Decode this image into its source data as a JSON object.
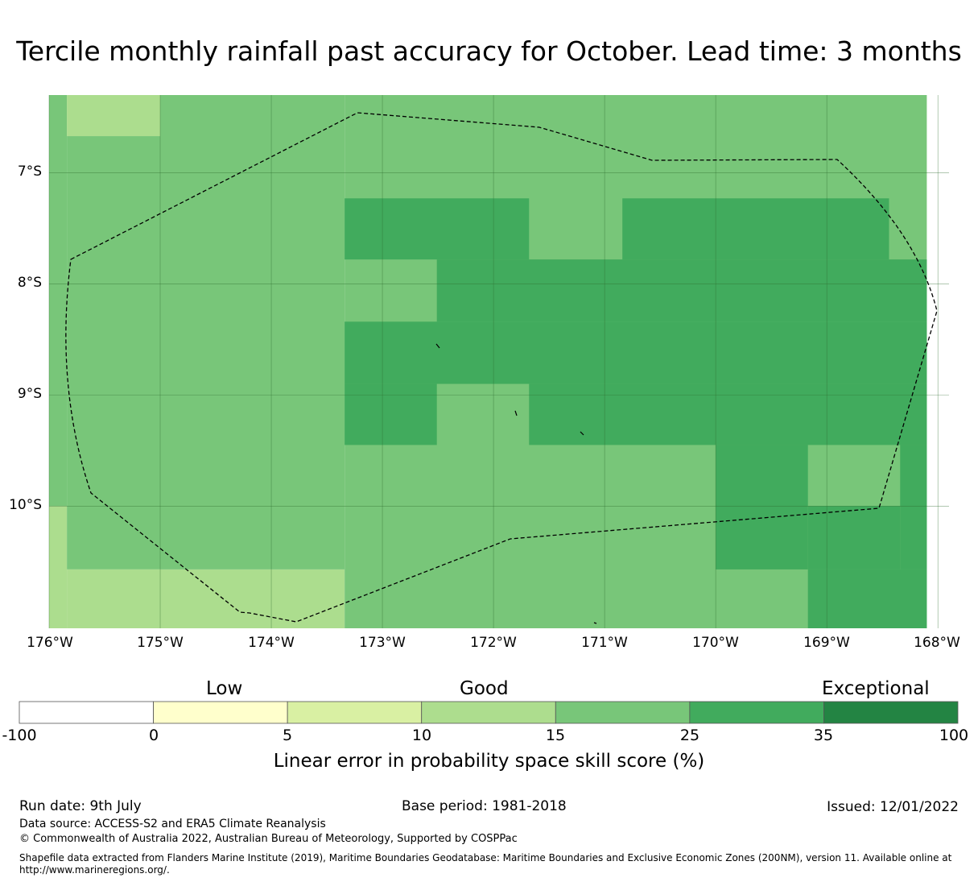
{
  "title": "Tercile monthly rainfall past accuracy for October. Lead time: 3 months",
  "map": {
    "lat_labels": [
      "7°S",
      "8°S",
      "9°S",
      "10°S"
    ],
    "lon_labels": [
      "176°W",
      "175°W",
      "174°W",
      "173°W",
      "172°W",
      "171°W",
      "170°W",
      "169°W",
      "168°W"
    ],
    "colors": {
      "class_10_15": "#acdd8e",
      "class_15_25": "#78c679",
      "class_25_35": "#41ab5d"
    },
    "grid_cells": [
      {
        "lon0": -176.0,
        "lon1": -175.84,
        "lat0": -6.3,
        "lat1": -10.0,
        "class": "class_15_25"
      },
      {
        "lon0": -175.84,
        "lon1": -175.0,
        "lat0": -6.3,
        "lat1": -6.67,
        "class": "class_10_15"
      },
      {
        "lon0": -175.84,
        "lon1": -175.0,
        "lat0": -6.67,
        "lat1": -10.57,
        "class": "class_15_25"
      },
      {
        "lon0": -176.0,
        "lon1": -175.84,
        "lat0": -10.0,
        "lat1": -11.1,
        "class": "class_10_15"
      },
      {
        "lon0": -175.84,
        "lon1": -173.34,
        "lat0": -10.57,
        "lat1": -11.1,
        "class": "class_10_15"
      },
      {
        "lon0": -175.0,
        "lon1": -173.34,
        "lat0": -6.3,
        "lat1": -10.57,
        "class": "class_15_25"
      },
      {
        "lon0": -173.34,
        "lon1": -168.1,
        "lat0": -6.3,
        "lat1": -11.1,
        "class": "class_15_25"
      },
      {
        "lon0": -173.34,
        "lon1": -171.68,
        "lat0": -7.23,
        "lat1": -7.78,
        "class": "class_25_35"
      },
      {
        "lon0": -170.84,
        "lon1": -168.44,
        "lat0": -7.23,
        "lat1": -7.78,
        "class": "class_25_35"
      },
      {
        "lon0": -172.51,
        "lon1": -168.1,
        "lat0": -7.78,
        "lat1": -8.34,
        "class": "class_25_35"
      },
      {
        "lon0": -173.34,
        "lon1": -168.1,
        "lat0": -8.34,
        "lat1": -8.9,
        "class": "class_25_35"
      },
      {
        "lon0": -173.34,
        "lon1": -172.51,
        "lat0": -8.9,
        "lat1": -9.45,
        "class": "class_25_35"
      },
      {
        "lon0": -171.68,
        "lon1": -168.1,
        "lat0": -8.9,
        "lat1": -9.45,
        "class": "class_25_35"
      },
      {
        "lon0": -170.0,
        "lon1": -169.17,
        "lat0": -9.45,
        "lat1": -10.57,
        "class": "class_25_35"
      },
      {
        "lon0": -168.34,
        "lon1": -168.1,
        "lat0": -9.45,
        "lat1": -10.57,
        "class": "class_25_35"
      },
      {
        "lon0": -169.17,
        "lon1": -168.34,
        "lat0": -10.0,
        "lat1": -10.57,
        "class": "class_25_35"
      },
      {
        "lon0": -170.0,
        "lon1": -169.17,
        "lat0": -10.57,
        "lat1": -10.57,
        "class": "class_25_35"
      },
      {
        "lon0": -169.17,
        "lon1": -168.1,
        "lat0": -10.57,
        "lat1": -11.1,
        "class": "class_25_35"
      }
    ]
  },
  "colorbar": {
    "categories": [
      "Low",
      "Good",
      "Exceptional"
    ],
    "ticks": [
      "-100",
      "0",
      "5",
      "10",
      "15",
      "25",
      "35",
      "100"
    ],
    "colors": [
      "#ffffff",
      "#ffffcc",
      "#d9f0a3",
      "#addd8e",
      "#78c679",
      "#41ab5d",
      "#238443"
    ],
    "label": "Linear error in probability space skill score (%)"
  },
  "footer": {
    "run_date": "Run date: 9th July",
    "base_period": "Base period: 1981-2018",
    "issued": "Issued: 12/01/2022",
    "data_source": "Data source: ACCESS-S2 and ERA5 Climate Reanalysis",
    "copyright": "© Commonwealth of Australia 2022, Australian Bureau of Meteorology, Supported by COSPPac",
    "shapefile_line1": "Shapefile data extracted from Flanders Marine Institute (2019), Maritime Boundaries Geodatabase: Maritime Boundaries and Exclusive Economic Zones (200NM), version 11. Available online at",
    "shapefile_line2": "http://www.marineregions.org/."
  }
}
